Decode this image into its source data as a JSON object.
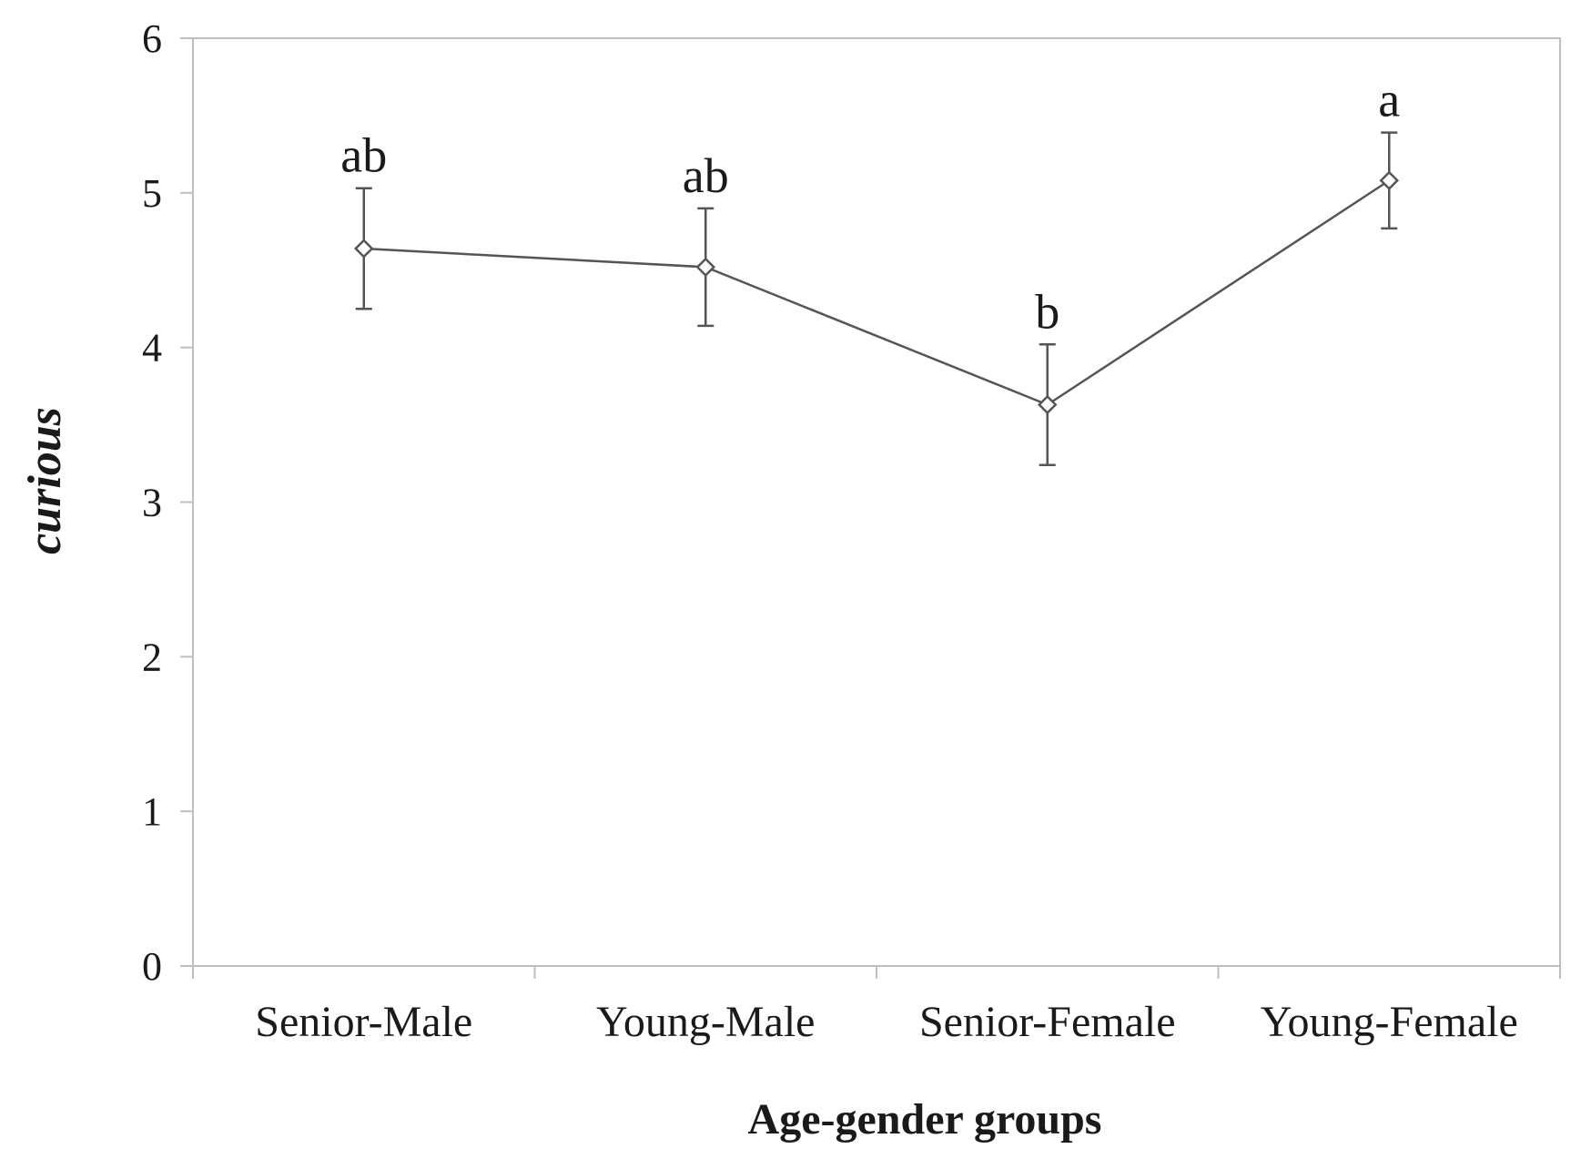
{
  "chart_data": {
    "type": "line",
    "xlabel": "Age-gender groups",
    "ylabel": "curious",
    "ylim": [
      0,
      6
    ],
    "yticks": [
      0,
      1,
      2,
      3,
      4,
      5,
      6
    ],
    "categories": [
      "Senior-Male",
      "Young-Male",
      "Senior-Female",
      "Young-Female"
    ],
    "series": [
      {
        "values": [
          4.64,
          4.52,
          3.63,
          5.08
        ],
        "error": [
          0.39,
          0.38,
          0.39,
          0.31
        ],
        "significance": [
          "ab",
          "ab",
          "b",
          "a"
        ]
      }
    ],
    "grid": false,
    "marker": "diamond-open",
    "colors": {
      "line": "#555555",
      "axis": "#bfbfbf",
      "marker_fill": "#ffffff",
      "text": "#1a1a1a"
    }
  }
}
